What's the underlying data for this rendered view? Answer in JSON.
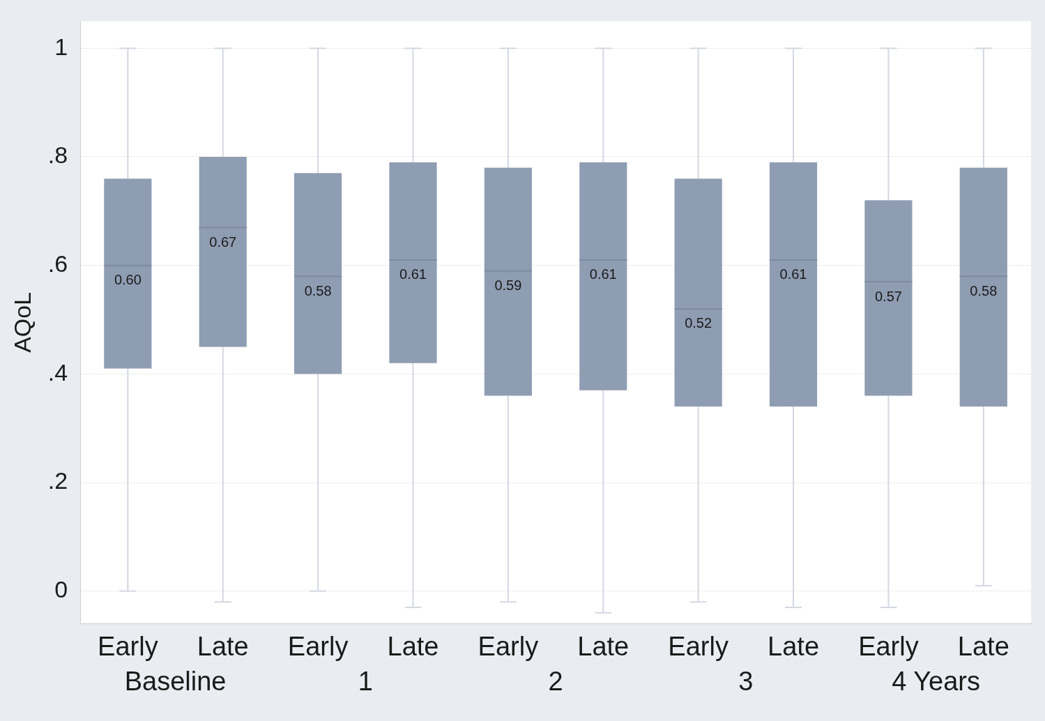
{
  "chart_data": {
    "type": "box",
    "ylabel": "AQoL",
    "categories": [
      "Early",
      "Late",
      "Early",
      "Late",
      "Early",
      "Late",
      "Early",
      "Late",
      "Early",
      "Late"
    ],
    "boxes": [
      {
        "low": 0.0,
        "q1": 0.41,
        "median": 0.6,
        "q3": 0.76,
        "high": 1
      },
      {
        "low": -0.02,
        "q1": 0.45,
        "median": 0.67,
        "q3": 0.8,
        "high": 1
      },
      {
        "low": 0.0,
        "q1": 0.4,
        "median": 0.58,
        "q3": 0.77,
        "high": 1
      },
      {
        "low": -0.03,
        "q1": 0.42,
        "median": 0.61,
        "q3": 0.79,
        "high": 1
      },
      {
        "low": -0.02,
        "q1": 0.36,
        "median": 0.59,
        "q3": 0.78,
        "high": 1
      },
      {
        "low": -0.04,
        "q1": 0.37,
        "median": 0.61,
        "q3": 0.79,
        "high": 1
      },
      {
        "low": -0.02,
        "q1": 0.34,
        "median": 0.52,
        "q3": 0.76,
        "high": 1
      },
      {
        "low": -0.03,
        "q1": 0.34,
        "median": 0.61,
        "q3": 0.79,
        "high": 1
      },
      {
        "low": -0.03,
        "q1": 0.36,
        "median": 0.57,
        "q3": 0.72,
        "high": 1
      },
      {
        "low": 0.01,
        "q1": 0.34,
        "median": 0.58,
        "q3": 0.78,
        "high": 1
      }
    ],
    "color": "#8f9db3",
    "value_labels": [
      "0.60",
      "0.67",
      "0.58",
      "0.61",
      "0.59",
      "0.61",
      "0.52",
      "0.61",
      "0.57",
      "0.58"
    ],
    "annotations": [
      "Baseline",
      "1",
      "2",
      "3",
      "4 Years"
    ],
    "ylim": [
      -0.06,
      1.05
    ],
    "yticks": [
      0,
      {
        "value": 0.2,
        "label": ".2"
      },
      {
        "value": 0.4,
        "label": ".4"
      },
      {
        "value": 0.6,
        "label": ".6"
      },
      {
        "value": 0.8,
        "label": ".8"
      },
      1
    ],
    "grid": "y",
    "legend": false
  }
}
